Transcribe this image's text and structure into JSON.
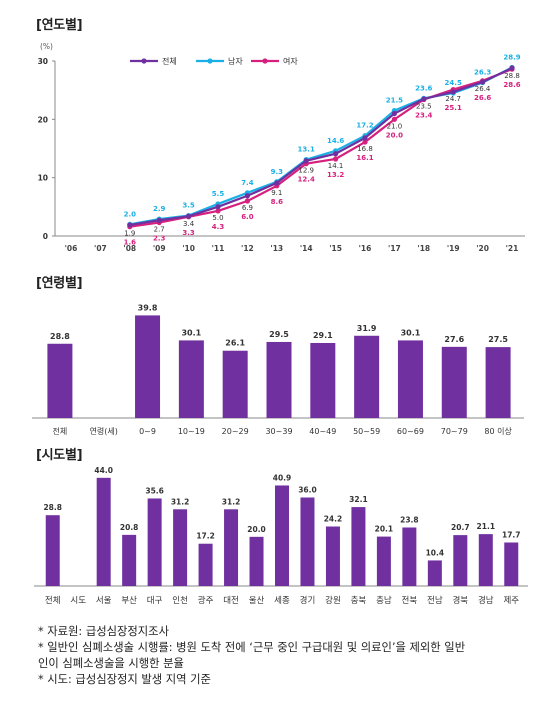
{
  "sections": {
    "yearly_title": "[연도별]",
    "age_title": "[연령별]",
    "region_title": "[시도별]"
  },
  "colors": {
    "total": "#7030a0",
    "male": "#1ab0e6",
    "female": "#d6207e",
    "bar": "#7030a0",
    "axis": "#888888"
  },
  "notes": [
    "* 자료원: 급성심장정지조사",
    "* 일반인 심폐소생술 시행률: 병원 도착 전에 ‘근무 중인 구급대원 및 의료인’을 제외한 일반",
    "인이 심폐소생술을 시행한 분율",
    "* 시도: 급성심장정지 발생 지역 기준"
  ],
  "chart_data": [
    {
      "type": "line",
      "unit_label": "(%)",
      "x": [
        "'06",
        "'07",
        "'08",
        "'09",
        "'10",
        "'11",
        "'12",
        "'13",
        "'14",
        "'15",
        "'16",
        "'17",
        "'18",
        "'19",
        "'20",
        "'21"
      ],
      "ylim": [
        0,
        30
      ],
      "yticks": [
        0,
        10,
        20,
        30
      ],
      "grid": false,
      "legend_position": "top",
      "series": [
        {
          "name": "전체",
          "color": "#7030a0",
          "values": [
            null,
            null,
            1.9,
            2.7,
            3.4,
            5.0,
            6.9,
            9.1,
            12.9,
            14.1,
            16.8,
            21.0,
            23.5,
            24.7,
            26.4,
            28.8
          ]
        },
        {
          "name": "남자",
          "color": "#1ab0e6",
          "values": [
            null,
            null,
            2.0,
            2.9,
            3.5,
            5.5,
            7.4,
            9.3,
            13.1,
            14.6,
            17.2,
            21.5,
            23.6,
            24.5,
            26.3,
            28.9
          ]
        },
        {
          "name": "여자",
          "color": "#d6207e",
          "values": [
            null,
            null,
            1.6,
            2.3,
            3.3,
            4.3,
            6.0,
            8.6,
            12.4,
            13.2,
            16.1,
            20.0,
            23.4,
            25.1,
            26.6,
            28.6
          ]
        }
      ]
    },
    {
      "type": "bar",
      "categories": [
        "전체",
        "연령(세)",
        "0~9",
        "10~19",
        "20~29",
        "30~39",
        "40~49",
        "50~59",
        "60~69",
        "70~79",
        "80 이상"
      ],
      "values": [
        28.8,
        null,
        39.8,
        30.1,
        26.1,
        29.5,
        29.1,
        31.9,
        30.1,
        27.6,
        27.5
      ],
      "ylim": [
        0,
        45
      ]
    },
    {
      "type": "bar",
      "categories": [
        "전체",
        "시도",
        "서울",
        "부산",
        "대구",
        "인천",
        "광주",
        "대전",
        "울산",
        "세종",
        "경기",
        "강원",
        "충북",
        "충남",
        "전북",
        "전남",
        "경북",
        "경남",
        "제주"
      ],
      "values": [
        28.8,
        null,
        44.0,
        20.8,
        35.6,
        31.2,
        17.2,
        31.2,
        20.0,
        40.9,
        36.0,
        24.2,
        32.1,
        20.1,
        23.8,
        10.4,
        20.7,
        21.1,
        17.7
      ],
      "ylim": [
        0,
        48
      ]
    }
  ]
}
